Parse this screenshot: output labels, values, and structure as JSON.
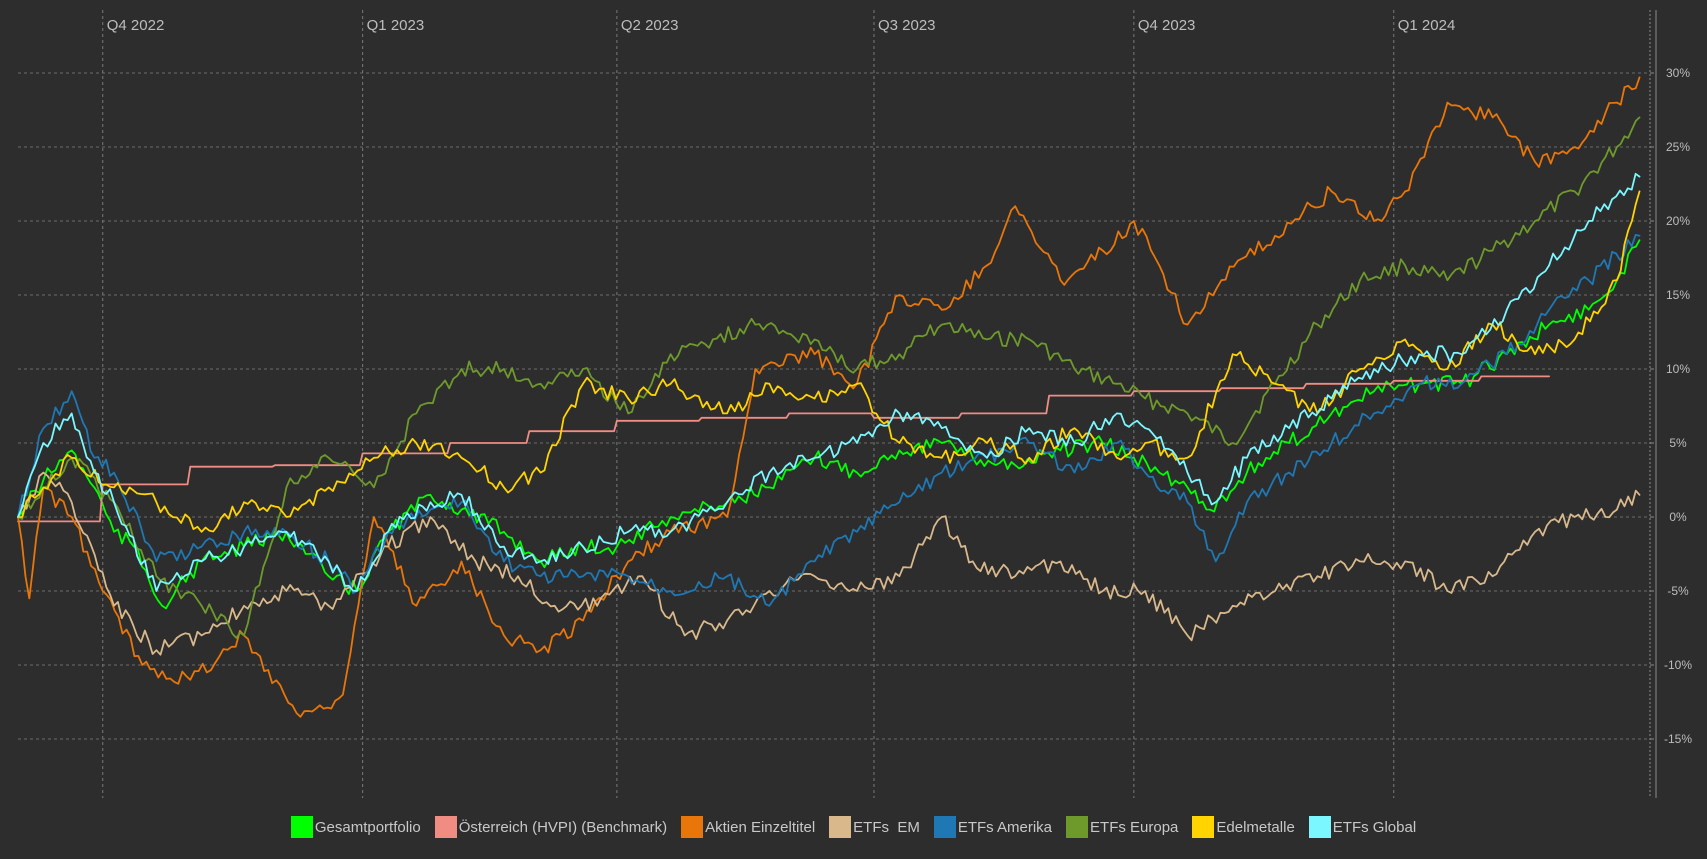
{
  "chart_data": {
    "type": "line",
    "title": "",
    "xlabel": "",
    "ylabel": "",
    "x_range": [
      "2022-09-01",
      "2024-03-31"
    ],
    "ylim": [
      -19,
      33
    ],
    "y_unit": "%",
    "y_ticks": [
      30,
      25,
      20,
      15,
      10,
      5,
      0,
      -5,
      -10,
      -15
    ],
    "y_tick_labels": [
      "30%",
      "25%",
      "20%",
      "15%",
      "10%",
      "5%",
      "0%",
      "-5%",
      "-10%",
      "-15%"
    ],
    "quarters": [
      {
        "label": "Q4 2022",
        "date": "2022-10-01"
      },
      {
        "label": "Q1 2023",
        "date": "2023-01-01"
      },
      {
        "label": "Q2 2023",
        "date": "2023-04-01"
      },
      {
        "label": "Q3 2023",
        "date": "2023-07-01"
      },
      {
        "label": "Q4 2023",
        "date": "2023-10-01"
      },
      {
        "label": "Q1 2024",
        "date": "2024-01-01"
      }
    ],
    "grid": true,
    "legend_position": "bottom",
    "series": [
      {
        "name": "Gesamtportfolio",
        "color": "#00ff00",
        "dates": [
          "2022-09-01",
          "2022-09-10",
          "2022-09-20",
          "2022-09-28",
          "2022-10-05",
          "2022-10-12",
          "2022-10-22",
          "2022-11-05",
          "2022-11-20",
          "2022-12-05",
          "2022-12-20",
          "2022-12-30",
          "2023-01-10",
          "2023-01-25",
          "2023-02-05",
          "2023-02-20",
          "2023-03-05",
          "2023-03-20",
          "2023-04-01",
          "2023-04-20",
          "2023-05-10",
          "2023-05-25",
          "2023-06-10",
          "2023-06-25",
          "2023-07-10",
          "2023-07-25",
          "2023-08-05",
          "2023-08-20",
          "2023-09-05",
          "2023-09-20",
          "2023-10-01",
          "2023-10-10",
          "2023-10-20",
          "2023-10-28",
          "2023-11-10",
          "2023-11-25",
          "2023-12-10",
          "2023-12-25",
          "2024-01-10",
          "2024-01-25",
          "2024-02-10",
          "2024-02-25",
          "2024-03-10",
          "2024-03-20",
          "2024-03-28"
        ],
        "values": [
          0,
          2.5,
          4.5,
          2,
          -1,
          -2,
          -6,
          -3,
          -2,
          -1,
          -4,
          -5,
          -1,
          1.5,
          0.5,
          -1,
          -3,
          -2,
          -2,
          0,
          1,
          2,
          4,
          3,
          4.5,
          5,
          4,
          3.5,
          4.5,
          5,
          4,
          3,
          2,
          0.5,
          3,
          5,
          7,
          8.5,
          9,
          9,
          11,
          13,
          14,
          16,
          18.7
        ]
      },
      {
        "name": "Österreich (HVPI) (Benchmark)",
        "color": "#f08c82",
        "dates": [
          "2022-09-01",
          "2022-09-30",
          "2022-10-01",
          "2022-10-31",
          "2022-11-01",
          "2022-11-30",
          "2022-12-01",
          "2022-12-31",
          "2023-01-01",
          "2023-01-31",
          "2023-02-01",
          "2023-02-28",
          "2023-03-01",
          "2023-03-31",
          "2023-04-01",
          "2023-04-30",
          "2023-05-01",
          "2023-05-31",
          "2023-06-01",
          "2023-06-30",
          "2023-07-01",
          "2023-07-31",
          "2023-08-01",
          "2023-08-31",
          "2023-09-01",
          "2023-09-30",
          "2023-10-01",
          "2023-10-31",
          "2023-11-01",
          "2023-11-30",
          "2023-12-01",
          "2023-12-31",
          "2024-01-01",
          "2024-01-31",
          "2024-02-01",
          "2024-02-25"
        ],
        "values": [
          -0.3,
          -0.3,
          2.2,
          2.2,
          3.4,
          3.4,
          3.5,
          3.5,
          4.3,
          4.3,
          5.0,
          5.0,
          5.8,
          5.8,
          6.5,
          6.5,
          6.7,
          6.7,
          7.0,
          7.0,
          6.7,
          6.7,
          7.0,
          7.0,
          8.2,
          8.2,
          8.5,
          8.5,
          8.7,
          8.7,
          9.0,
          9.0,
          9.2,
          9.2,
          9.5,
          9.5
        ]
      },
      {
        "name": "Aktien Einzeltitel",
        "color": "#e8760a",
        "dates": [
          "2022-09-01",
          "2022-09-05",
          "2022-09-10",
          "2022-09-20",
          "2022-10-01",
          "2022-10-15",
          "2022-11-01",
          "2022-11-20",
          "2022-12-10",
          "2022-12-25",
          "2023-01-05",
          "2023-01-20",
          "2023-02-05",
          "2023-02-20",
          "2023-03-05",
          "2023-03-20",
          "2023-04-05",
          "2023-04-20",
          "2023-05-10",
          "2023-05-20",
          "2023-06-10",
          "2023-06-25",
          "2023-07-10",
          "2023-07-25",
          "2023-08-10",
          "2023-08-20",
          "2023-09-05",
          "2023-09-20",
          "2023-10-01",
          "2023-10-10",
          "2023-10-20",
          "2023-11-01",
          "2023-11-20",
          "2023-12-10",
          "2023-12-25",
          "2024-01-05",
          "2024-01-20",
          "2024-02-05",
          "2024-02-20",
          "2024-03-05",
          "2024-03-20",
          "2024-03-28"
        ],
        "values": [
          0,
          -5.5,
          2,
          0,
          -5,
          -10,
          -11,
          -8,
          -13.5,
          -12,
          0,
          -6,
          -3,
          -8,
          -9,
          -7,
          -3,
          -1,
          0,
          10,
          11,
          9,
          15,
          14,
          17,
          21,
          16,
          18,
          20,
          17,
          13,
          16,
          19,
          22,
          20,
          22,
          28,
          27,
          24,
          25,
          28,
          29.7
        ]
      },
      {
        "name": "ETFs  EM",
        "color": "#d9b98c",
        "dates": [
          "2022-09-01",
          "2022-09-10",
          "2022-09-20",
          "2022-10-05",
          "2022-10-20",
          "2022-11-05",
          "2022-11-20",
          "2022-12-05",
          "2022-12-20",
          "2023-01-10",
          "2023-01-25",
          "2023-02-10",
          "2023-02-25",
          "2023-03-10",
          "2023-03-25",
          "2023-04-10",
          "2023-04-25",
          "2023-05-10",
          "2023-05-25",
          "2023-06-10",
          "2023-06-25",
          "2023-07-10",
          "2023-07-25",
          "2023-08-05",
          "2023-08-20",
          "2023-09-05",
          "2023-09-20",
          "2023-10-05",
          "2023-10-20",
          "2023-11-05",
          "2023-11-20",
          "2023-12-05",
          "2023-12-20",
          "2024-01-05",
          "2024-01-20",
          "2024-02-05",
          "2024-02-20",
          "2024-03-05",
          "2024-03-20",
          "2024-03-28"
        ],
        "values": [
          0,
          3,
          1,
          -6,
          -9,
          -8,
          -6,
          -5,
          -6,
          -2,
          0,
          -3,
          -4,
          -6,
          -6,
          -4,
          -8,
          -7,
          -5,
          -4,
          -5,
          -4,
          0,
          -3,
          -4,
          -3,
          -5,
          -5,
          -8,
          -6,
          -5,
          -4,
          -3,
          -3,
          -5,
          -4,
          -1,
          0,
          0.5,
          1.5
        ]
      },
      {
        "name": "ETFs Amerika",
        "color": "#1f78b4",
        "dates": [
          "2022-09-01",
          "2022-09-10",
          "2022-09-20",
          "2022-09-28",
          "2022-10-05",
          "2022-10-20",
          "2022-11-05",
          "2022-11-20",
          "2022-12-05",
          "2022-12-20",
          "2022-12-30",
          "2023-01-10",
          "2023-01-25",
          "2023-02-05",
          "2023-02-20",
          "2023-03-05",
          "2023-03-20",
          "2023-04-05",
          "2023-04-20",
          "2023-05-10",
          "2023-05-25",
          "2023-06-10",
          "2023-06-25",
          "2023-07-10",
          "2023-07-25",
          "2023-08-10",
          "2023-08-25",
          "2023-09-10",
          "2023-09-25",
          "2023-10-05",
          "2023-10-20",
          "2023-10-30",
          "2023-11-10",
          "2023-11-25",
          "2023-12-10",
          "2023-12-25",
          "2024-01-10",
          "2024-01-25",
          "2024-02-10",
          "2024-02-25",
          "2024-03-10",
          "2024-03-28"
        ],
        "values": [
          0,
          6,
          8.5,
          4,
          3,
          -3,
          -2,
          -1,
          -1,
          -3,
          -5,
          -1,
          0.5,
          1,
          -3,
          -4,
          -4,
          -4,
          -5,
          -4,
          -6,
          -3,
          -1,
          1,
          3,
          4,
          5,
          3,
          5,
          3,
          1,
          -3,
          1,
          3,
          5,
          7,
          9,
          9,
          11,
          14,
          16,
          19
        ]
      },
      {
        "name": "ETFs Europa",
        "color": "#6e9a2c",
        "dates": [
          "2022-09-01",
          "2022-09-10",
          "2022-09-20",
          "2022-10-05",
          "2022-10-20",
          "2022-11-05",
          "2022-11-20",
          "2022-12-05",
          "2022-12-20",
          "2023-01-05",
          "2023-01-20",
          "2023-02-05",
          "2023-02-20",
          "2023-03-05",
          "2023-03-20",
          "2023-04-05",
          "2023-04-20",
          "2023-05-05",
          "2023-05-20",
          "2023-06-10",
          "2023-06-25",
          "2023-07-10",
          "2023-07-25",
          "2023-08-10",
          "2023-08-25",
          "2023-09-10",
          "2023-09-25",
          "2023-10-05",
          "2023-10-20",
          "2023-11-05",
          "2023-11-20",
          "2023-12-05",
          "2023-12-20",
          "2024-01-05",
          "2024-01-20",
          "2024-02-05",
          "2024-02-20",
          "2024-03-05",
          "2024-03-20",
          "2024-03-28"
        ],
        "values": [
          0,
          2,
          4,
          1,
          -4,
          -6,
          -8,
          2,
          4,
          2,
          7,
          10,
          10,
          9,
          10,
          7,
          11,
          12,
          13,
          12,
          10,
          11,
          13,
          12,
          12,
          10,
          9,
          8,
          7,
          5,
          9,
          13,
          16,
          17,
          16,
          18,
          20,
          22,
          25,
          27
        ]
      },
      {
        "name": "Edelmetalle",
        "color": "#ffd400",
        "dates": [
          "2022-09-01",
          "2022-09-10",
          "2022-09-20",
          "2022-10-05",
          "2022-10-20",
          "2022-11-05",
          "2022-11-20",
          "2022-12-05",
          "2022-12-20",
          "2023-01-05",
          "2023-01-20",
          "2023-02-05",
          "2023-02-20",
          "2023-03-05",
          "2023-03-20",
          "2023-04-05",
          "2023-04-20",
          "2023-05-10",
          "2023-05-25",
          "2023-06-10",
          "2023-06-25",
          "2023-07-10",
          "2023-07-25",
          "2023-08-10",
          "2023-08-25",
          "2023-09-10",
          "2023-09-25",
          "2023-10-05",
          "2023-10-20",
          "2023-11-05",
          "2023-11-20",
          "2023-12-05",
          "2023-12-20",
          "2024-01-05",
          "2024-01-20",
          "2024-02-05",
          "2024-02-20",
          "2024-03-05",
          "2024-03-20",
          "2024-03-28"
        ],
        "values": [
          0,
          2,
          4,
          2,
          1,
          -1,
          1,
          0,
          2,
          4,
          5,
          4,
          2,
          3,
          9,
          8,
          9,
          7,
          9,
          8,
          9,
          5,
          4,
          5,
          4,
          6,
          4,
          5,
          4,
          11,
          9,
          7,
          10,
          12,
          10,
          13,
          11,
          12,
          16,
          22
        ]
      },
      {
        "name": "ETFs Global",
        "color": "#7af7ff",
        "dates": [
          "2022-09-01",
          "2022-09-10",
          "2022-09-20",
          "2022-09-28",
          "2022-10-05",
          "2022-10-20",
          "2022-11-05",
          "2022-11-20",
          "2022-12-05",
          "2022-12-20",
          "2022-12-30",
          "2023-01-10",
          "2023-01-25",
          "2023-02-05",
          "2023-02-20",
          "2023-03-05",
          "2023-03-20",
          "2023-04-05",
          "2023-04-20",
          "2023-05-10",
          "2023-05-25",
          "2023-06-10",
          "2023-06-25",
          "2023-07-10",
          "2023-07-25",
          "2023-08-10",
          "2023-08-25",
          "2023-09-10",
          "2023-09-25",
          "2023-10-05",
          "2023-10-20",
          "2023-10-30",
          "2023-11-10",
          "2023-11-25",
          "2023-12-10",
          "2023-12-25",
          "2024-01-10",
          "2024-01-25",
          "2024-02-10",
          "2024-02-25",
          "2024-03-10",
          "2024-03-28"
        ],
        "values": [
          0,
          5,
          7,
          3,
          1,
          -5,
          -3,
          -2,
          -1,
          -3,
          -5,
          -1,
          1,
          1.5,
          -2,
          -3,
          -2,
          -1,
          -1,
          1,
          3,
          4,
          5,
          7,
          6,
          4,
          6,
          5,
          7,
          6,
          3,
          1,
          4,
          6,
          8,
          10,
          11,
          11,
          14,
          17,
          20,
          23
        ]
      }
    ]
  }
}
